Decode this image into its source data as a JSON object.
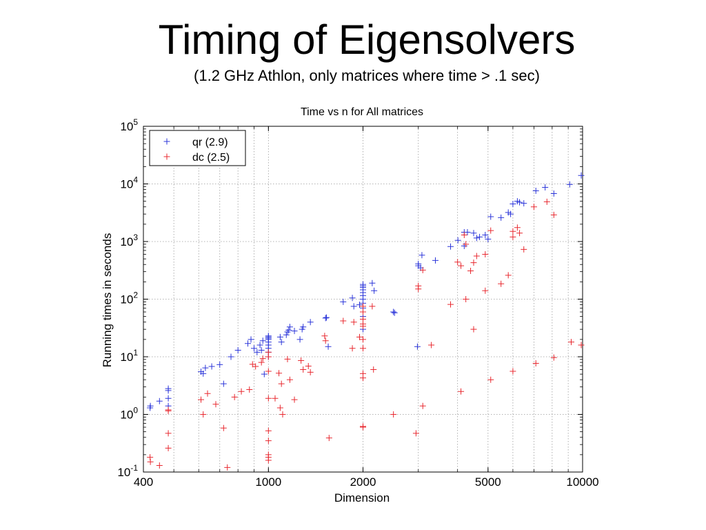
{
  "slide": {
    "title": "Timing of Eigensolvers",
    "subtitle": "(1.2 GHz Athlon, only matrices where time > .1 sec)"
  },
  "chart_data": {
    "type": "scatter",
    "title": "Time vs n for All matrices",
    "xlabel": "Dimension",
    "ylabel": "Running times in seconds",
    "x_scale": "log",
    "y_scale": "log",
    "xlim": [
      400,
      10000
    ],
    "ylim": [
      0.1,
      100000
    ],
    "x_ticks": [
      {
        "value": 400,
        "label": "400"
      },
      {
        "value": 1000,
        "label": "1000"
      },
      {
        "value": 2000,
        "label": "2000"
      },
      {
        "value": 5000,
        "label": "5000"
      },
      {
        "value": 10000,
        "label": "10000"
      }
    ],
    "y_ticks": [
      {
        "value": 0.1,
        "base": "10",
        "exp": "-1"
      },
      {
        "value": 1,
        "base": "10",
        "exp": "0"
      },
      {
        "value": 10,
        "base": "10",
        "exp": "1"
      },
      {
        "value": 100,
        "base": "10",
        "exp": "2"
      },
      {
        "value": 1000,
        "base": "10",
        "exp": "3"
      },
      {
        "value": 10000,
        "base": "10",
        "exp": "4"
      },
      {
        "value": 100000,
        "base": "10",
        "exp": "5"
      }
    ],
    "grid": true,
    "legend_position": "top-left",
    "series": [
      {
        "name": "qr (2.9)",
        "color": "#2b35d9",
        "points": [
          [
            420,
            1.3
          ],
          [
            421,
            1.4
          ],
          [
            450,
            1.7
          ],
          [
            480,
            2.6
          ],
          [
            480,
            2.8
          ],
          [
            480,
            1.9
          ],
          [
            480,
            1.4
          ],
          [
            610,
            5.5
          ],
          [
            620,
            5.1
          ],
          [
            630,
            6.4
          ],
          [
            660,
            6.8
          ],
          [
            700,
            7.3
          ],
          [
            720,
            3.4
          ],
          [
            760,
            10
          ],
          [
            800,
            13
          ],
          [
            860,
            17
          ],
          [
            880,
            20
          ],
          [
            900,
            14
          ],
          [
            920,
            12
          ],
          [
            940,
            16
          ],
          [
            950,
            13
          ],
          [
            960,
            19
          ],
          [
            970,
            5
          ],
          [
            1000,
            10
          ],
          [
            1000,
            12
          ],
          [
            1000,
            14
          ],
          [
            1000,
            16
          ],
          [
            1000,
            18
          ],
          [
            1000,
            20
          ],
          [
            1000,
            21
          ],
          [
            1000,
            22
          ],
          [
            1000,
            23
          ],
          [
            1090,
            22
          ],
          [
            1100,
            18
          ],
          [
            1140,
            24
          ],
          [
            1150,
            27
          ],
          [
            1160,
            29
          ],
          [
            1170,
            33
          ],
          [
            1210,
            28
          ],
          [
            1260,
            20
          ],
          [
            1280,
            30
          ],
          [
            1290,
            33
          ],
          [
            1360,
            40
          ],
          [
            1520,
            47
          ],
          [
            1530,
            48
          ],
          [
            1550,
            15
          ],
          [
            1730,
            90
          ],
          [
            1850,
            105
          ],
          [
            1870,
            75
          ],
          [
            1950,
            80
          ],
          [
            2000,
            30
          ],
          [
            2000,
            50
          ],
          [
            2000,
            60
          ],
          [
            2000,
            70
          ],
          [
            2000,
            85
          ],
          [
            2000,
            100
          ],
          [
            2000,
            115
          ],
          [
            2000,
            130
          ],
          [
            2000,
            145
          ],
          [
            2000,
            160
          ],
          [
            2000,
            170
          ],
          [
            2000,
            180
          ],
          [
            2140,
            190
          ],
          [
            2170,
            140
          ],
          [
            2500,
            60
          ],
          [
            2520,
            58
          ],
          [
            2980,
            15
          ],
          [
            3000,
            380
          ],
          [
            3000,
            410
          ],
          [
            3050,
            350
          ],
          [
            3080,
            580
          ],
          [
            3400,
            470
          ],
          [
            3800,
            820
          ],
          [
            4010,
            1050
          ],
          [
            4200,
            840
          ],
          [
            4200,
            1450
          ],
          [
            4300,
            1450
          ],
          [
            4500,
            1400
          ],
          [
            4600,
            1150
          ],
          [
            4700,
            1200
          ],
          [
            4900,
            1300
          ],
          [
            5000,
            1100
          ],
          [
            5100,
            2700
          ],
          [
            5500,
            2600
          ],
          [
            5800,
            3200
          ],
          [
            5900,
            3000
          ],
          [
            6000,
            4500
          ],
          [
            6200,
            5000
          ],
          [
            6300,
            4800
          ],
          [
            6500,
            4600
          ],
          [
            7100,
            7600
          ],
          [
            7600,
            8700
          ],
          [
            8100,
            6800
          ],
          [
            9100,
            9800
          ],
          [
            9900,
            14000
          ]
        ]
      },
      {
        "name": "dc (2.5)",
        "color": "#e8282f",
        "points": [
          [
            420,
            0.18
          ],
          [
            421,
            0.15
          ],
          [
            450,
            0.13
          ],
          [
            480,
            1.2
          ],
          [
            480,
            1.15
          ],
          [
            480,
            0.47
          ],
          [
            480,
            0.26
          ],
          [
            610,
            1.8
          ],
          [
            620,
            1.0
          ],
          [
            640,
            2.3
          ],
          [
            680,
            1.5
          ],
          [
            720,
            0.58
          ],
          [
            740,
            0.12
          ],
          [
            780,
            2.0
          ],
          [
            820,
            2.5
          ],
          [
            870,
            2.7
          ],
          [
            890,
            7.4
          ],
          [
            910,
            6.8
          ],
          [
            950,
            8.0
          ],
          [
            960,
            9.3
          ],
          [
            1000,
            10
          ],
          [
            1000,
            12
          ],
          [
            1000,
            5.6
          ],
          [
            1000,
            1.9
          ],
          [
            1000,
            0.52
          ],
          [
            1000,
            0.35
          ],
          [
            1000,
            0.2
          ],
          [
            1000,
            0.18
          ],
          [
            1000,
            0.16
          ],
          [
            1050,
            1.9
          ],
          [
            1080,
            5.2
          ],
          [
            1090,
            1.3
          ],
          [
            1100,
            3.4
          ],
          [
            1110,
            1.0
          ],
          [
            1150,
            9.1
          ],
          [
            1170,
            4.0
          ],
          [
            1210,
            1.8
          ],
          [
            1270,
            8.6
          ],
          [
            1290,
            6.0
          ],
          [
            1340,
            6.9
          ],
          [
            1360,
            5.4
          ],
          [
            1510,
            23
          ],
          [
            1520,
            19
          ],
          [
            1560,
            0.39
          ],
          [
            1730,
            42
          ],
          [
            1850,
            14
          ],
          [
            1870,
            40
          ],
          [
            1950,
            22
          ],
          [
            2000,
            60
          ],
          [
            2000,
            75
          ],
          [
            2000,
            45
          ],
          [
            2000,
            37
          ],
          [
            2000,
            34
          ],
          [
            2000,
            20
          ],
          [
            2000,
            14
          ],
          [
            2000,
            5.1
          ],
          [
            2000,
            4.3
          ],
          [
            2000,
            0.62
          ],
          [
            2000,
            0.6
          ],
          [
            2140,
            75
          ],
          [
            2160,
            6.0
          ],
          [
            2500,
            1.0
          ],
          [
            2950,
            0.47
          ],
          [
            3000,
            150
          ],
          [
            3000,
            170
          ],
          [
            3100,
            320
          ],
          [
            3100,
            1.4
          ],
          [
            3300,
            16
          ],
          [
            3800,
            81
          ],
          [
            4000,
            440
          ],
          [
            4100,
            380
          ],
          [
            4100,
            2.5
          ],
          [
            4200,
            1300
          ],
          [
            4250,
            900
          ],
          [
            4250,
            100
          ],
          [
            4400,
            310
          ],
          [
            4500,
            430
          ],
          [
            4500,
            30
          ],
          [
            4600,
            560
          ],
          [
            4900,
            600
          ],
          [
            4900,
            140
          ],
          [
            5100,
            1550
          ],
          [
            5100,
            4.0
          ],
          [
            5500,
            185
          ],
          [
            5800,
            260
          ],
          [
            6000,
            1200
          ],
          [
            6000,
            1500
          ],
          [
            6000,
            5.6
          ],
          [
            6200,
            1750
          ],
          [
            6300,
            1400
          ],
          [
            6500,
            730
          ],
          [
            7000,
            4000
          ],
          [
            7100,
            7.7
          ],
          [
            7700,
            4900
          ],
          [
            8100,
            2900
          ],
          [
            8100,
            9.7
          ],
          [
            9200,
            18
          ],
          [
            9900,
            16
          ]
        ]
      }
    ]
  }
}
